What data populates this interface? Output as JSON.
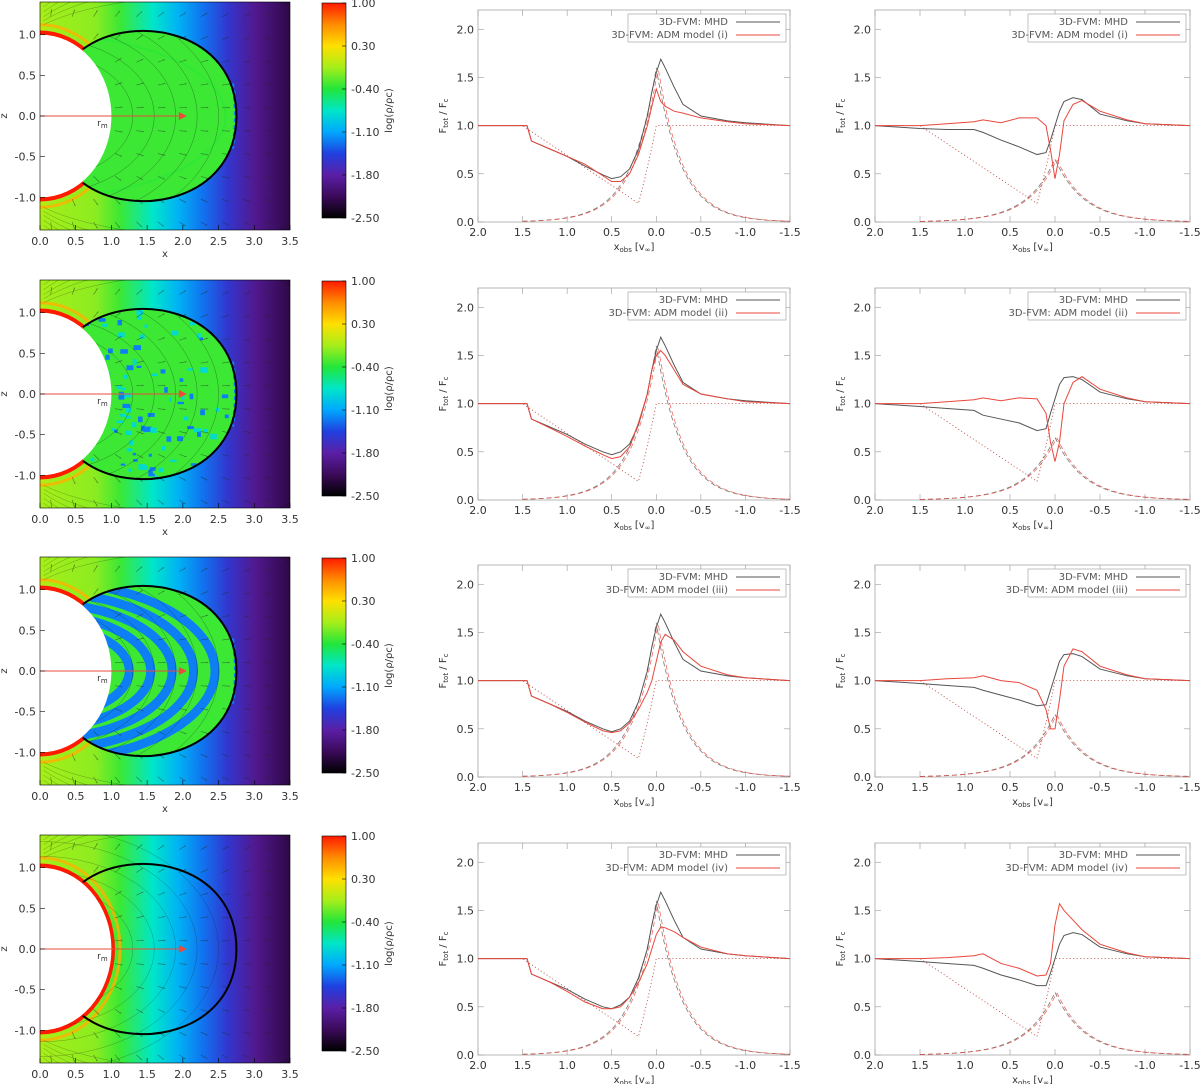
{
  "colors": {
    "mhd": "#555555",
    "adm": "#e8473c",
    "arrow": "#e74c3c",
    "axis": "#999999",
    "colormap": [
      "#000000",
      "#3b0a5a",
      "#5b1fa6",
      "#2040e0",
      "#00a8ff",
      "#00e6c8",
      "#22e63a",
      "#a6ee1a",
      "#ffe000",
      "#ff8c00",
      "#ff1a00"
    ]
  },
  "density_panel": {
    "xlabel": "x",
    "ylabel": "z",
    "radius_label": "r",
    "radius_sub": "m",
    "xlim": [
      0.0,
      3.5
    ],
    "ylim": [
      -1.4,
      1.4
    ],
    "x_ticks": [
      "0.0",
      "0.5",
      "1.0",
      "1.5",
      "2.0",
      "2.5",
      "3.0",
      "3.5"
    ],
    "y_ticks": [
      "-1.0",
      "-0.5",
      "0.0",
      "0.5",
      "1.0"
    ],
    "colorbar": {
      "label": "log(ρ/ρc)",
      "ticks": [
        "1.00",
        "0.30",
        "-0.40",
        "-1.10",
        "-1.80",
        "-2.50"
      ],
      "range": [
        -2.5,
        1.0
      ]
    },
    "star_radius": 1.0,
    "closed_loop_extent": 2.75,
    "marker_x": 2.0
  },
  "line_axes": {
    "ylabel_main": "F",
    "ylabel_main_sub": "tot",
    "ylabel_sep": " / F",
    "ylabel_den_sub": "c",
    "xlabel_main": "x",
    "xlabel_sub": "obs",
    "xlabel_unit": "[v",
    "xlabel_unit_sub": "∞",
    "xlabel_close": "]",
    "xlim": [
      2.0,
      -1.5
    ],
    "ylim": [
      0.0,
      2.2
    ],
    "x_ticks": [
      "2.0",
      "1.5",
      "1.0",
      "0.5",
      "0.0",
      "-0.5",
      "-1.0",
      "-1.5"
    ],
    "y_ticks": [
      "0.0",
      "0.5",
      "1.0",
      "1.5",
      "2.0"
    ]
  },
  "rows": [
    {
      "model": "(i)",
      "density_style": "smooth",
      "legend": [
        "3D-FVM: MHD",
        "3D-FVM: ADM model (i)"
      ],
      "chart_data": [
        {
          "type": "line",
          "panel": "left-profile",
          "x": [
            2.0,
            1.5,
            1.45,
            1.4,
            1.2,
            1.0,
            0.8,
            0.6,
            0.5,
            0.4,
            0.3,
            0.2,
            0.1,
            0.05,
            0.0,
            -0.05,
            -0.1,
            -0.2,
            -0.3,
            -0.5,
            -0.8,
            -1.0,
            -1.5
          ],
          "series": [
            {
              "values": [
                1.0,
                1.0,
                1.0,
                0.84,
                0.76,
                0.68,
                0.58,
                0.49,
                0.45,
                0.47,
                0.55,
                0.75,
                1.1,
                1.35,
                1.55,
                1.69,
                1.6,
                1.4,
                1.22,
                1.1,
                1.05,
                1.03,
                1.0
              ]
            },
            {
              "values": [
                1.0,
                1.0,
                1.0,
                0.84,
                0.76,
                0.68,
                0.6,
                0.48,
                0.42,
                0.42,
                0.5,
                0.7,
                1.0,
                1.2,
                1.38,
                1.25,
                1.2,
                1.15,
                1.13,
                1.08,
                1.04,
                1.02,
                1.0
              ]
            }
          ]
        },
        {
          "type": "line",
          "panel": "right-profile",
          "x": [
            2.0,
            1.5,
            1.2,
            0.9,
            0.8,
            0.6,
            0.4,
            0.2,
            0.1,
            0.05,
            0.0,
            -0.05,
            -0.1,
            -0.2,
            -0.3,
            -0.5,
            -0.8,
            -1.0,
            -1.5
          ],
          "series": [
            {
              "values": [
                1.0,
                0.97,
                0.96,
                0.96,
                0.93,
                0.85,
                0.78,
                0.7,
                0.72,
                0.85,
                1.0,
                1.15,
                1.25,
                1.29,
                1.27,
                1.12,
                1.05,
                1.02,
                1.0
              ]
            },
            {
              "values": [
                1.0,
                1.0,
                1.02,
                1.04,
                1.06,
                1.03,
                1.08,
                1.08,
                1.0,
                0.75,
                0.45,
                0.7,
                1.05,
                1.22,
                1.26,
                1.15,
                1.06,
                1.02,
                1.0
              ]
            }
          ]
        }
      ]
    },
    {
      "model": "(ii)",
      "density_style": "clumpy",
      "legend": [
        "3D-FVM: MHD",
        "3D-FVM: ADM model (ii)"
      ],
      "chart_data": [
        {
          "type": "line",
          "panel": "left-profile",
          "x": [
            2.0,
            1.5,
            1.45,
            1.4,
            1.2,
            1.0,
            0.8,
            0.6,
            0.5,
            0.4,
            0.3,
            0.2,
            0.1,
            0.05,
            0.0,
            -0.05,
            -0.1,
            -0.2,
            -0.3,
            -0.5,
            -0.8,
            -1.0,
            -1.5
          ],
          "series": [
            {
              "values": [
                1.0,
                1.0,
                1.0,
                0.84,
                0.76,
                0.68,
                0.58,
                0.5,
                0.47,
                0.5,
                0.58,
                0.78,
                1.1,
                1.35,
                1.55,
                1.69,
                1.6,
                1.4,
                1.22,
                1.1,
                1.05,
                1.03,
                1.0
              ]
            },
            {
              "values": [
                1.0,
                1.0,
                1.0,
                0.84,
                0.75,
                0.66,
                0.56,
                0.47,
                0.43,
                0.45,
                0.55,
                0.8,
                1.1,
                1.35,
                1.5,
                1.55,
                1.5,
                1.35,
                1.2,
                1.1,
                1.05,
                1.02,
                1.0
              ]
            }
          ]
        },
        {
          "type": "line",
          "panel": "right-profile",
          "x": [
            2.0,
            1.5,
            1.2,
            0.9,
            0.8,
            0.6,
            0.4,
            0.2,
            0.1,
            0.05,
            0.0,
            -0.05,
            -0.1,
            -0.2,
            -0.3,
            -0.5,
            -0.8,
            -1.0,
            -1.5
          ],
          "series": [
            {
              "values": [
                1.0,
                0.97,
                0.95,
                0.93,
                0.88,
                0.84,
                0.8,
                0.72,
                0.74,
                0.9,
                1.05,
                1.2,
                1.27,
                1.28,
                1.25,
                1.12,
                1.05,
                1.02,
                1.0
              ]
            },
            {
              "values": [
                1.0,
                1.0,
                1.02,
                1.04,
                1.06,
                1.03,
                1.06,
                1.05,
                0.9,
                0.6,
                0.4,
                0.6,
                1.0,
                1.22,
                1.28,
                1.15,
                1.06,
                1.02,
                1.0
              ]
            }
          ]
        }
      ]
    },
    {
      "model": "(iii)",
      "density_style": "shells",
      "legend": [
        "3D-FVM: MHD",
        "3D-FVM: ADM model (iii)"
      ],
      "chart_data": [
        {
          "type": "line",
          "panel": "left-profile",
          "x": [
            2.0,
            1.5,
            1.45,
            1.4,
            1.2,
            1.0,
            0.8,
            0.6,
            0.5,
            0.4,
            0.3,
            0.2,
            0.1,
            0.05,
            0.0,
            -0.05,
            -0.1,
            -0.2,
            -0.3,
            -0.5,
            -0.8,
            -1.0,
            -1.5
          ],
          "series": [
            {
              "values": [
                1.0,
                1.0,
                1.0,
                0.84,
                0.76,
                0.68,
                0.58,
                0.5,
                0.47,
                0.5,
                0.58,
                0.78,
                1.1,
                1.35,
                1.55,
                1.69,
                1.6,
                1.4,
                1.22,
                1.1,
                1.05,
                1.03,
                1.0
              ]
            },
            {
              "values": [
                1.0,
                1.0,
                1.0,
                0.84,
                0.76,
                0.67,
                0.57,
                0.48,
                0.46,
                0.48,
                0.56,
                0.7,
                0.88,
                1.0,
                1.2,
                1.4,
                1.48,
                1.42,
                1.3,
                1.15,
                1.06,
                1.03,
                1.0
              ]
            }
          ]
        },
        {
          "type": "line",
          "panel": "right-profile",
          "x": [
            2.0,
            1.5,
            1.2,
            0.9,
            0.8,
            0.6,
            0.4,
            0.2,
            0.1,
            0.05,
            0.0,
            -0.05,
            -0.1,
            -0.2,
            -0.3,
            -0.5,
            -0.8,
            -1.0,
            -1.5
          ],
          "series": [
            {
              "values": [
                1.0,
                0.97,
                0.95,
                0.93,
                0.9,
                0.85,
                0.8,
                0.74,
                0.75,
                0.9,
                1.05,
                1.2,
                1.27,
                1.28,
                1.25,
                1.12,
                1.05,
                1.02,
                1.0
              ]
            },
            {
              "values": [
                1.0,
                1.0,
                1.02,
                1.03,
                1.05,
                1.0,
                0.98,
                0.9,
                0.7,
                0.5,
                0.5,
                0.8,
                1.15,
                1.33,
                1.3,
                1.15,
                1.06,
                1.02,
                1.0
              ]
            }
          ]
        }
      ]
    },
    {
      "model": "(iv)",
      "density_style": "empty",
      "legend": [
        "3D-FVM: MHD",
        "3D-FVM: ADM model (iv)"
      ],
      "chart_data": [
        {
          "type": "line",
          "panel": "left-profile",
          "x": [
            2.0,
            1.5,
            1.45,
            1.4,
            1.2,
            1.0,
            0.8,
            0.6,
            0.5,
            0.4,
            0.3,
            0.2,
            0.1,
            0.05,
            0.0,
            -0.05,
            -0.1,
            -0.2,
            -0.3,
            -0.5,
            -0.8,
            -1.0,
            -1.5
          ],
          "series": [
            {
              "values": [
                1.0,
                1.0,
                1.0,
                0.84,
                0.76,
                0.68,
                0.58,
                0.5,
                0.48,
                0.52,
                0.6,
                0.8,
                1.1,
                1.35,
                1.55,
                1.69,
                1.6,
                1.4,
                1.22,
                1.1,
                1.05,
                1.03,
                1.0
              ]
            },
            {
              "values": [
                1.0,
                1.0,
                1.0,
                0.84,
                0.76,
                0.66,
                0.55,
                0.48,
                0.48,
                0.5,
                0.6,
                0.75,
                0.95,
                1.1,
                1.25,
                1.33,
                1.32,
                1.28,
                1.22,
                1.12,
                1.05,
                1.03,
                1.0
              ]
            }
          ]
        },
        {
          "type": "line",
          "panel": "right-profile",
          "x": [
            2.0,
            1.5,
            1.2,
            0.9,
            0.8,
            0.6,
            0.4,
            0.2,
            0.1,
            0.05,
            0.0,
            -0.05,
            -0.1,
            -0.2,
            -0.3,
            -0.5,
            -0.8,
            -1.0,
            -1.5
          ],
          "series": [
            {
              "values": [
                1.0,
                0.97,
                0.95,
                0.93,
                0.9,
                0.83,
                0.78,
                0.72,
                0.72,
                0.85,
                1.0,
                1.15,
                1.24,
                1.27,
                1.25,
                1.12,
                1.05,
                1.02,
                1.0
              ]
            },
            {
              "values": [
                1.0,
                1.0,
                1.01,
                1.03,
                1.05,
                0.95,
                0.9,
                0.82,
                0.83,
                0.95,
                1.35,
                1.57,
                1.5,
                1.4,
                1.3,
                1.15,
                1.06,
                1.02,
                1.0
              ]
            }
          ]
        }
      ]
    }
  ]
}
